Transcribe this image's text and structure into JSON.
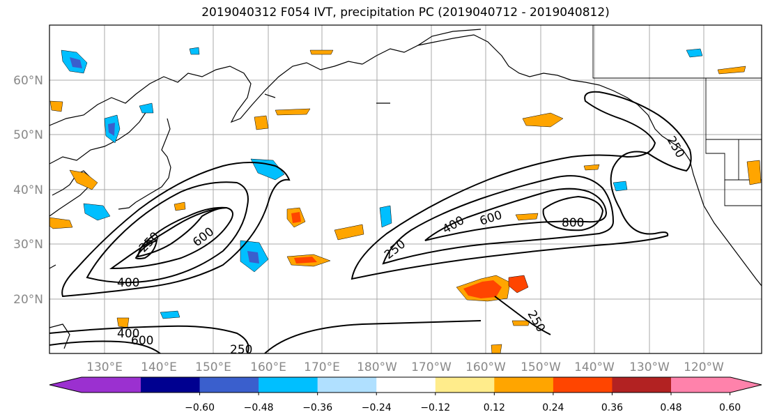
{
  "title": "2019040312 F054 IVT, precipitation PC (2019040712 - 2019040812)",
  "map": {
    "lon_labels": [
      "130°E",
      "140°E",
      "150°E",
      "160°E",
      "170°E",
      "180°W",
      "170°W",
      "160°W",
      "150°W",
      "140°W",
      "130°W",
      "120°W"
    ],
    "lat_labels": [
      "60°N",
      "50°N",
      "40°N",
      "30°N",
      "20°N"
    ],
    "contour_labels": [
      "600",
      "400",
      "400",
      "600",
      "250",
      "400",
      "600",
      "800",
      "250",
      "250",
      "250",
      "250"
    ],
    "contour_color": "#000000",
    "label_color": "#888888"
  },
  "colorbar": {
    "tick_labels": [
      "−0.60",
      "−0.48",
      "−0.36",
      "−0.24",
      "−0.12",
      "0.12",
      "0.24",
      "0.36",
      "0.48",
      "0.60"
    ],
    "colors": [
      "#9b30d0",
      "#000090",
      "#3a5fcd",
      "#00bfff",
      "#b0e0ff",
      "#ffffff",
      "#ffec8b",
      "#ffa500",
      "#ff4500",
      "#b22222",
      "#ff82ab"
    ]
  }
}
